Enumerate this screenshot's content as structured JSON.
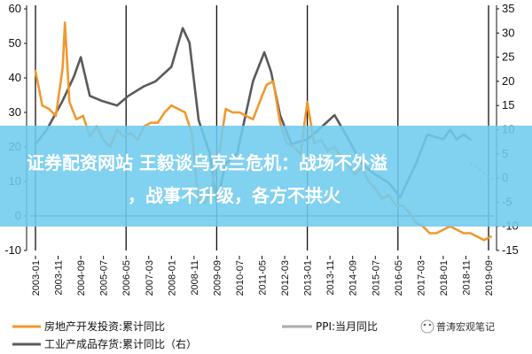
{
  "banner": {
    "line1": "证券配资网站   王毅谈乌克兰危机：战场不外溢",
    "line2": "，战事不升级，各方不拱火"
  },
  "watermark": "普涛宏观笔记",
  "colors": {
    "real_estate": "#F0982F",
    "inventory": "#5A5A5A",
    "ppi": "#AAAAAA",
    "banner": "#6FCBEF"
  },
  "chart_data": {
    "type": "line",
    "title": "",
    "left_axis": {
      "min": -10,
      "max": 60,
      "ticks": [
        "-10",
        "0",
        "10",
        "20",
        "30",
        "40",
        "50",
        "60"
      ]
    },
    "right_axis": {
      "min": -15,
      "max": 35,
      "ticks": [
        "-15",
        "-10",
        "-5",
        "0",
        "5",
        "10",
        "15",
        "20",
        "25",
        "30",
        "35"
      ]
    },
    "x_ticks": [
      "2003-01",
      "2003-11",
      "2004-09",
      "2005-07",
      "2006-05",
      "2007-03",
      "2008-01",
      "2008-11",
      "2009-09",
      "2010-07",
      "2011-05",
      "2012-03",
      "2013-01",
      "2013-11",
      "2014-09",
      "2015-07",
      "2016-05",
      "2017-03",
      "2018-01",
      "2018-11",
      "2019-09"
    ],
    "vertical_lines": [
      "2003-01",
      "2006-05",
      "2009-09",
      "2013-01",
      "2016-05",
      "2019-09"
    ],
    "grid": false,
    "legend_position": "bottom",
    "series": [
      {
        "name": "房地产开发投资:累计同比",
        "axis": "left",
        "style": "line",
        "x": [
          "2003-01",
          "2003-04",
          "2003-07",
          "2003-10",
          "2004-01",
          "2004-02",
          "2004-04",
          "2004-07",
          "2004-10",
          "2005-01",
          "2005-04",
          "2005-07",
          "2005-10",
          "2006-01",
          "2006-04",
          "2006-07",
          "2006-10",
          "2007-01",
          "2007-04",
          "2007-07",
          "2007-10",
          "2008-01",
          "2008-04",
          "2008-07",
          "2008-10",
          "2009-01",
          "2009-04",
          "2009-07",
          "2009-10",
          "2010-01",
          "2010-04",
          "2010-07",
          "2010-10",
          "2011-01",
          "2011-04",
          "2011-07",
          "2011-10",
          "2012-01",
          "2012-04",
          "2012-07",
          "2012-10",
          "2013-01",
          "2013-04",
          "2013-07",
          "2013-10",
          "2014-01",
          "2014-04",
          "2014-07",
          "2014-10",
          "2015-01",
          "2015-04",
          "2015-07",
          "2015-10",
          "2016-01",
          "2016-04",
          "2016-07",
          "2016-10",
          "2017-01",
          "2017-04",
          "2017-07",
          "2017-10",
          "2018-01",
          "2018-04",
          "2018-07",
          "2018-10",
          "2019-01",
          "2019-04",
          "2019-07",
          "2019-10"
        ],
        "y": [
          42,
          32,
          31,
          29,
          43,
          56,
          33,
          28,
          29,
          23,
          26,
          22,
          20,
          25,
          23,
          24,
          22,
          26,
          27,
          27,
          30,
          32,
          31,
          30,
          24,
          4,
          4,
          9,
          18,
          31,
          30,
          30,
          29,
          28,
          33,
          38,
          39,
          27,
          21,
          20,
          18,
          33,
          21,
          22,
          19,
          20,
          17,
          15,
          12,
          14,
          10,
          8,
          5,
          6,
          3,
          3,
          1,
          -2,
          -3,
          -5,
          -5,
          -4,
          -3,
          -4,
          -5,
          -5,
          -6,
          -7,
          -6
        ]
      },
      {
        "name": "PPI:当月同比",
        "axis": "right",
        "style": "dotted",
        "x": [
          "2019-01",
          "2019-03",
          "2019-06",
          "2019-09",
          "2019-12"
        ],
        "y": [
          3,
          2.5,
          1.5,
          0.2,
          -0.5
        ]
      },
      {
        "name": "工业产成品存货:累计同比（右）",
        "axis": "right",
        "style": "line",
        "x": [
          "2003-01",
          "2003-06",
          "2004-01",
          "2004-06",
          "2004-09",
          "2005-01",
          "2005-06",
          "2006-01",
          "2006-06",
          "2007-01",
          "2007-06",
          "2008-01",
          "2008-06",
          "2008-09",
          "2009-01",
          "2009-06",
          "2009-09",
          "2010-01",
          "2010-06",
          "2011-01",
          "2011-06",
          "2011-09",
          "2012-01",
          "2012-06",
          "2013-01",
          "2013-06",
          "2014-01",
          "2014-06",
          "2015-01",
          "2015-06",
          "2016-01",
          "2016-06",
          "2017-01",
          "2017-06",
          "2018-01",
          "2018-04",
          "2018-07",
          "2018-10",
          "2019-01"
        ],
        "y": [
          7,
          10,
          16,
          21,
          25,
          17,
          16,
          15,
          17,
          19,
          20,
          23,
          31,
          28,
          12,
          5,
          -5,
          3,
          5,
          20,
          26,
          22,
          13,
          7,
          8,
          10,
          13,
          9,
          3,
          1,
          -1,
          -4,
          3,
          9,
          8,
          10,
          8,
          9,
          8
        ]
      }
    ]
  }
}
